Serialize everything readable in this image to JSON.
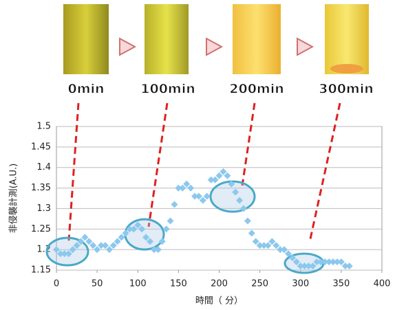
{
  "chart_data": {
    "type": "scatter",
    "photo_labels": [
      "0min",
      "100min",
      "200min",
      "300min"
    ],
    "xlabel": "時間（ 分）",
    "ylabel": "非侵襲計測(A.U.)",
    "xlim": [
      0,
      400
    ],
    "xticks": [
      0,
      50,
      100,
      150,
      200,
      250,
      300,
      350,
      400
    ],
    "ylim": [
      1.15,
      1.5
    ],
    "yticks": [
      1.15,
      1.2,
      1.25,
      1.3,
      1.35,
      1.4,
      1.45,
      1.5
    ],
    "grid": true,
    "x": [
      0,
      5,
      10,
      15,
      20,
      25,
      30,
      35,
      40,
      45,
      50,
      55,
      60,
      65,
      70,
      75,
      80,
      85,
      90,
      95,
      100,
      105,
      110,
      115,
      120,
      125,
      130,
      135,
      140,
      145,
      150,
      155,
      160,
      165,
      170,
      175,
      180,
      185,
      190,
      195,
      200,
      205,
      210,
      215,
      220,
      225,
      230,
      235,
      240,
      245,
      250,
      255,
      260,
      265,
      270,
      275,
      280,
      285,
      290,
      295,
      300,
      305,
      310,
      315,
      320,
      325,
      330,
      335,
      340,
      345,
      350,
      355,
      360
    ],
    "series": [
      {
        "color": "#8cc8ee",
        "values": [
          1.2,
          1.19,
          1.19,
          1.19,
          1.2,
          1.21,
          1.22,
          1.23,
          1.22,
          1.21,
          1.2,
          1.21,
          1.21,
          1.2,
          1.21,
          1.22,
          1.23,
          1.24,
          1.25,
          1.25,
          1.26,
          1.25,
          1.23,
          1.22,
          1.2,
          1.2,
          1.22,
          1.25,
          1.27,
          1.31,
          1.35,
          1.35,
          1.36,
          1.35,
          1.33,
          1.33,
          1.32,
          1.33,
          1.37,
          1.37,
          1.38,
          1.39,
          1.38,
          1.36,
          1.34,
          1.32,
          1.3,
          1.27,
          1.24,
          1.22,
          1.21,
          1.21,
          1.21,
          1.22,
          1.21,
          1.2,
          1.2,
          1.19,
          1.18,
          1.17,
          1.16,
          1.16,
          1.16,
          1.16,
          1.17,
          1.17,
          1.17,
          1.17,
          1.17,
          1.17,
          1.17,
          1.16,
          1.16
        ]
      }
    ]
  }
}
